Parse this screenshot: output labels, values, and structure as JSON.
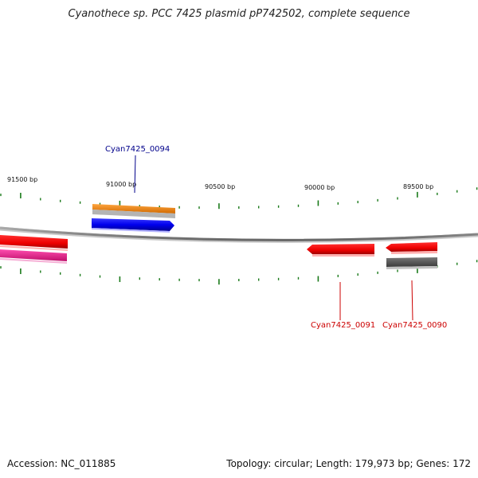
{
  "title": "Cyanothece sp. PCC 7425 plasmid pP742502, complete sequence",
  "footer": {
    "accession": "Accession: NC_011885",
    "summary": "Topology: circular; Length: 179,973 bp; Genes: 172"
  },
  "ruler": {
    "labels": [
      "91500 bp",
      "91000 bp",
      "90500 bp",
      "90000 bp",
      "89500 bp"
    ],
    "tick_color": "#1a7a1a"
  },
  "backbone_color": "#888888",
  "genes": [
    {
      "id": "Cyan7425_0094",
      "color": "#0000ee",
      "label_color": "#00008b",
      "strand": "+"
    },
    {
      "id": "Cyan7425_0091",
      "color": "#ee0000",
      "label_color": "#cc0000",
      "strand": "-"
    },
    {
      "id": "Cyan7425_0090",
      "color": "#ee0000",
      "label_color": "#cc0000",
      "strand": "-"
    }
  ],
  "features": {
    "orange": "#ff8c00",
    "grey": "#b4b4b4",
    "dark_grey": "#555555",
    "magenta": "#ee1f8c",
    "red": "#ee0000"
  }
}
